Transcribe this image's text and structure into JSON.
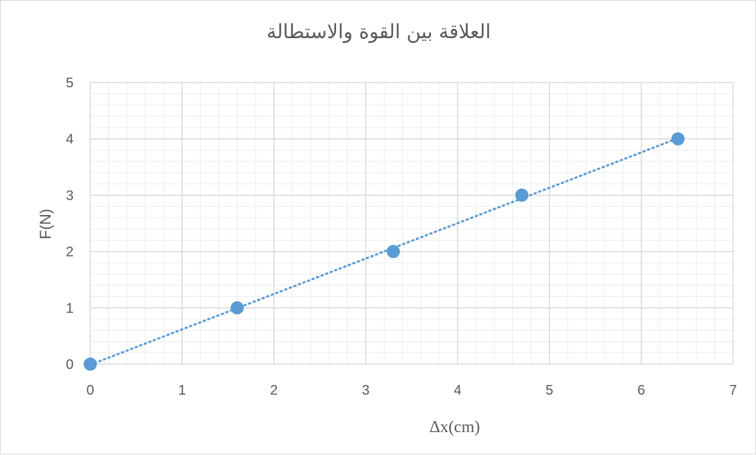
{
  "chart_data": {
    "type": "scatter",
    "title": "العلاقة بين القوة والاستطالة",
    "xlabel": "Δx(cm)",
    "ylabel": "F(N)",
    "xlim": [
      0,
      7
    ],
    "ylim": [
      0,
      5
    ],
    "x_ticks": [
      "0",
      "1",
      "2",
      "3",
      "4",
      "5",
      "6",
      "7"
    ],
    "y_ticks": [
      "0",
      "1",
      "2",
      "3",
      "4",
      "5"
    ],
    "grid": true,
    "minor_grid": true,
    "legend": "none",
    "series": [
      {
        "points": [
          {
            "x": 0,
            "y": 0
          },
          {
            "x": 1.6,
            "y": 1
          },
          {
            "x": 3.3,
            "y": 2
          },
          {
            "x": 4.7,
            "y": 3
          },
          {
            "x": 6.4,
            "y": 4
          }
        ],
        "color": "#5b9bd5",
        "trendline": "linear-dotted"
      }
    ]
  }
}
